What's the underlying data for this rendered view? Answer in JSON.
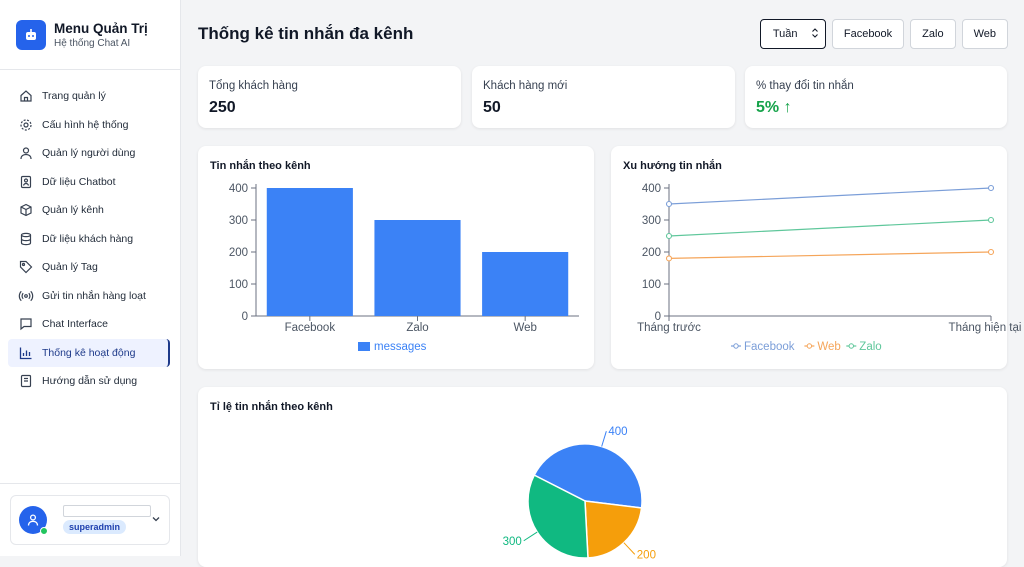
{
  "sidebar": {
    "title": "Menu Quản Trị",
    "subtitle": "Hệ thống Chat AI",
    "items": [
      {
        "label": "Trang quản lý",
        "icon": "home-icon"
      },
      {
        "label": "Cấu hình hệ thống",
        "icon": "gear-icon"
      },
      {
        "label": "Quản lý người dùng",
        "icon": "user-icon"
      },
      {
        "label": "Dữ liệu Chatbot",
        "icon": "bot-icon"
      },
      {
        "label": "Quản lý kênh",
        "icon": "box-icon"
      },
      {
        "label": "Dữ liệu khách hàng",
        "icon": "database-icon"
      },
      {
        "label": "Quản lý Tag",
        "icon": "tag-icon"
      },
      {
        "label": "Gửi tin nhắn hàng loạt",
        "icon": "broadcast-icon"
      },
      {
        "label": "Chat Interface",
        "icon": "chat-icon"
      },
      {
        "label": "Thống kê hoạt động",
        "icon": "bar-chart-icon"
      },
      {
        "label": "Hướng dẫn sử dụng",
        "icon": "book-icon"
      }
    ],
    "active_index": 9,
    "user": {
      "name": "",
      "role": "superadmin"
    }
  },
  "header": {
    "title": "Thống kê tin nhắn đa kênh",
    "period_select": "Tuần",
    "channel_buttons": [
      "Facebook",
      "Zalo",
      "Web"
    ]
  },
  "stats": [
    {
      "label": "Tổng khách hàng",
      "value": "250"
    },
    {
      "label": "Khách hàng mới",
      "value": "50"
    },
    {
      "label": "% thay đổi tin nhắn",
      "value": "5% ↑"
    }
  ],
  "colors": {
    "primary": "#3b82f6",
    "facebook": "#7b9ed8",
    "web": "#f5a55a",
    "zalo": "#5fc79b",
    "pie_blue": "#3b82f6",
    "pie_green": "#10b981",
    "pie_orange": "#f59e0b"
  },
  "chart_data": [
    {
      "type": "bar",
      "title": "Tin nhắn theo kênh",
      "categories": [
        "Facebook",
        "Zalo",
        "Web"
      ],
      "series": [
        {
          "name": "messages",
          "values": [
            400,
            300,
            200
          ]
        }
      ],
      "yticks": [
        "0",
        "100",
        "200",
        "300",
        "400"
      ],
      "ylim": [
        0,
        400
      ],
      "legend": "bottom"
    },
    {
      "type": "line",
      "title": "Xu hướng tin nhắn",
      "x": [
        "Tháng trước",
        "Tháng hiện tại"
      ],
      "series": [
        {
          "name": "Facebook",
          "values": [
            350,
            400
          ]
        },
        {
          "name": "Web",
          "values": [
            180,
            200
          ]
        },
        {
          "name": "Zalo",
          "values": [
            250,
            300
          ]
        }
      ],
      "yticks": [
        "0",
        "100",
        "200",
        "300",
        "400"
      ],
      "ylim": [
        0,
        400
      ],
      "legend": "bottom"
    },
    {
      "type": "pie",
      "title": "Tỉ lệ tin nhắn theo kênh",
      "labels": [
        "400",
        "200",
        "300"
      ],
      "values": [
        400,
        200,
        300
      ]
    }
  ]
}
